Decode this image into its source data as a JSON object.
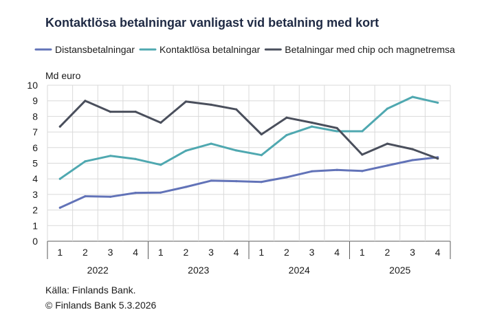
{
  "chart_data": {
    "type": "line",
    "title": "Kontaktlösa betalningar vanligast vid betalning med kort",
    "ylabel": "Md euro",
    "xlabel": "",
    "ylim": [
      0,
      10
    ],
    "yticks": [
      "0",
      "1",
      "2",
      "3",
      "4",
      "5",
      "6",
      "7",
      "8",
      "9",
      "10"
    ],
    "categories": [
      "1",
      "2",
      "3",
      "4",
      "1",
      "2",
      "3",
      "4",
      "1",
      "2",
      "3",
      "4",
      "1",
      "2",
      "3",
      "4"
    ],
    "years": [
      "2022",
      "2023",
      "2024",
      "2025"
    ],
    "grid": true,
    "legend_position": "top",
    "series": [
      {
        "name": "Distansbetalningar",
        "color": "#6273b8",
        "values": [
          2.15,
          2.88,
          2.85,
          3.1,
          3.12,
          3.48,
          3.88,
          3.85,
          3.8,
          4.1,
          4.48,
          4.57,
          4.5,
          4.85,
          5.2,
          5.38
        ]
      },
      {
        "name": "Kontaktlösa betalningar",
        "color": "#4fa8b0",
        "values": [
          4.0,
          5.12,
          5.47,
          5.27,
          4.9,
          5.8,
          6.25,
          5.82,
          5.52,
          6.8,
          7.35,
          7.05,
          7.05,
          8.5,
          9.25,
          8.88
        ]
      },
      {
        "name": "Betalningar med chip och magnetremsa",
        "color": "#4a4f5c",
        "values": [
          7.35,
          9.0,
          8.3,
          8.3,
          7.6,
          8.95,
          8.75,
          8.45,
          6.85,
          7.92,
          7.6,
          7.25,
          5.55,
          6.25,
          5.9,
          5.3
        ]
      }
    ]
  },
  "source": {
    "line1": "Källa: Finlands Bank.",
    "line2": "© Finlands Bank 5.3.2026"
  }
}
